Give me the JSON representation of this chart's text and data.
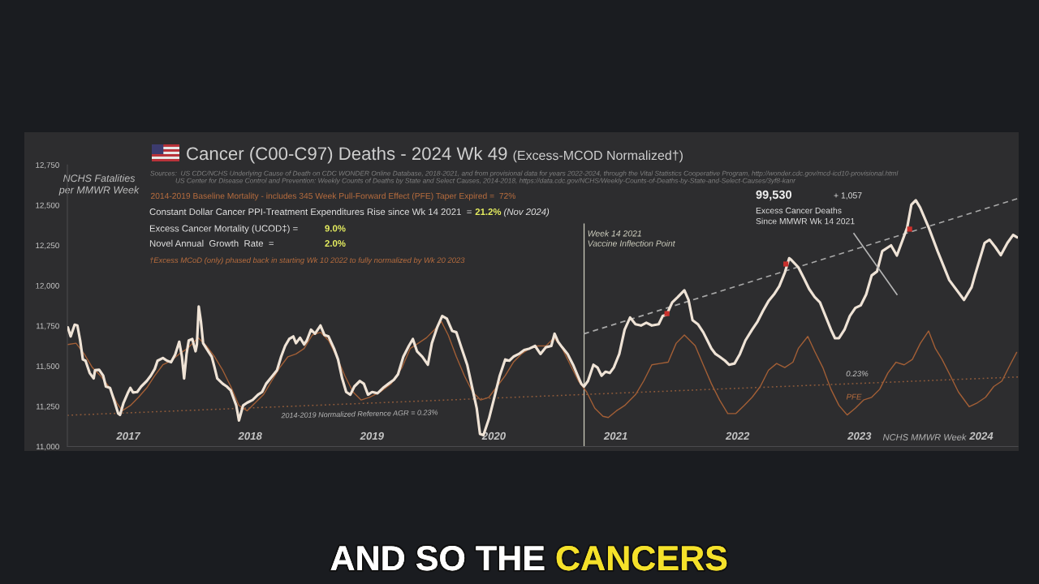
{
  "chart_data": {
    "type": "line",
    "title": "Cancer (C00-C97) Deaths - 2024 Wk 49",
    "subtitle": "(Excess-MCOD Normalized†)",
    "ylabel": "NCHS Fatalities\nper MMWR Week",
    "xlabel": "NCHS MMWR Week",
    "xlim": [
      2017.0,
      2024.8
    ],
    "xticks": [
      {
        "value": 2017.5,
        "label": "2017"
      },
      {
        "value": 2018.5,
        "label": "2018"
      },
      {
        "value": 2019.5,
        "label": "2019"
      },
      {
        "value": 2020.5,
        "label": "2020"
      },
      {
        "value": 2021.5,
        "label": "2021"
      },
      {
        "value": 2022.5,
        "label": "2022"
      },
      {
        "value": 2023.5,
        "label": "2023"
      },
      {
        "value": 2024.5,
        "label": "2024"
      }
    ],
    "ylim": [
      11000,
      12750
    ],
    "yticks": [
      {
        "value": 11000,
        "label": "11,000"
      },
      {
        "value": 11250,
        "label": "11,250"
      },
      {
        "value": 11500,
        "label": "11,500"
      },
      {
        "value": 11750,
        "label": "11,750"
      },
      {
        "value": 12000,
        "label": "12,000"
      },
      {
        "value": 12250,
        "label": "12,250"
      },
      {
        "value": 12500,
        "label": "12,500"
      },
      {
        "value": 12750,
        "label": "12,750"
      }
    ],
    "grid": false,
    "series": [
      {
        "color": "#a35f36",
        "line_style": "solid",
        "x": [
          2017.004,
          2017.071,
          2017.138,
          2017.205,
          2017.272,
          2017.339,
          2017.405,
          2017.45,
          2017.517,
          2017.584,
          2017.651,
          2017.717,
          2017.784,
          2017.851,
          2017.918,
          2017.985,
          2018.074,
          2018.141,
          2018.208,
          2018.275,
          2018.341,
          2018.408,
          2018.475,
          2018.542,
          2018.609,
          2018.676,
          2018.743,
          2018.81,
          2018.876,
          2018.943,
          2019.01,
          2019.077,
          2019.143,
          2019.21,
          2019.277,
          2019.344,
          2019.411,
          2019.479,
          2019.568,
          2019.657,
          2019.746,
          2019.813,
          2019.88,
          2019.947,
          2020.013,
          2020.069,
          2020.125,
          2020.192,
          2020.258,
          2020.325,
          2020.392,
          2020.459,
          2020.526,
          2020.593,
          2020.66,
          2020.726,
          2020.793,
          2020.86,
          2020.927,
          2020.994,
          2021.061,
          2021.127,
          2021.194,
          2021.261,
          2021.328,
          2021.395,
          2021.439,
          2021.506,
          2021.573,
          2021.662,
          2021.729,
          2021.796,
          2021.863,
          2021.93,
          2021.996,
          2022.063,
          2022.152,
          2022.218,
          2022.285,
          2022.352,
          2022.419,
          2022.486,
          2022.553,
          2022.619,
          2022.686,
          2022.753,
          2022.82,
          2022.887,
          2022.954,
          2022.998,
          2023.076,
          2023.132,
          2023.199,
          2023.266,
          2023.332,
          2023.399,
          2023.466,
          2023.533,
          2023.6,
          2023.666,
          2023.733,
          2023.8,
          2023.867,
          2023.934,
          2024.0,
          2024.067,
          2024.123,
          2024.178,
          2024.246,
          2024.312,
          2024.401,
          2024.468,
          2024.535,
          2024.602,
          2024.669,
          2024.736,
          2024.79
        ],
        "values": [
          11634,
          11642,
          11575,
          11491,
          11440,
          11373,
          11272,
          11222,
          11255,
          11306,
          11364,
          11440,
          11508,
          11533,
          11575,
          11609,
          11676,
          11625,
          11558,
          11474,
          11373,
          11255,
          11222,
          11272,
          11322,
          11407,
          11491,
          11558,
          11575,
          11609,
          11693,
          11710,
          11659,
          11558,
          11440,
          11339,
          11289,
          11306,
          11339,
          11390,
          11491,
          11609,
          11642,
          11676,
          11726,
          11777,
          11693,
          11558,
          11440,
          11339,
          11289,
          11306,
          11373,
          11440,
          11524,
          11575,
          11609,
          11625,
          11625,
          11676,
          11609,
          11508,
          11407,
          11339,
          11238,
          11188,
          11180,
          11222,
          11255,
          11322,
          11407,
          11508,
          11516,
          11524,
          11642,
          11693,
          11626,
          11508,
          11390,
          11289,
          11205,
          11205,
          11255,
          11306,
          11373,
          11474,
          11516,
          11491,
          11524,
          11609,
          11684,
          11592,
          11491,
          11356,
          11255,
          11196,
          11238,
          11289,
          11306,
          11356,
          11457,
          11524,
          11508,
          11541,
          11642,
          11718,
          11609,
          11541,
          11440,
          11339,
          11247,
          11272,
          11306,
          11373,
          11407,
          11508,
          11585
        ]
      },
      {
        "color": "#8f5b3b",
        "line_style": "dotted",
        "x": [
          2017.0,
          2024.8
        ],
        "values": [
          11194,
          11432
        ]
      },
      {
        "color": "#a8a8a8",
        "line_style": "dashed",
        "x": [
          2021.238,
          2024.794
        ],
        "values": [
          11700,
          12540
        ]
      },
      {
        "color": "#efe3d6",
        "line_style": "solid",
        "x": [
          2017.004,
          2017.027,
          2017.06,
          2017.082,
          2017.105,
          2017.127,
          2017.149,
          2017.183,
          2017.216,
          2017.227,
          2017.261,
          2017.294,
          2017.316,
          2017.35,
          2017.383,
          2017.417,
          2017.432,
          2017.461,
          2017.495,
          2017.517,
          2017.539,
          2017.573,
          2017.606,
          2017.651,
          2017.684,
          2017.717,
          2017.74,
          2017.784,
          2017.818,
          2017.851,
          2017.885,
          2017.918,
          2017.94,
          2017.958,
          2017.978,
          2017.996,
          2018.025,
          2018.052,
          2018.063,
          2018.078,
          2018.096,
          2018.114,
          2018.141,
          2018.185,
          2018.208,
          2018.23,
          2018.275,
          2018.308,
          2018.341,
          2018.386,
          2018.408,
          2018.442,
          2018.475,
          2018.52,
          2018.564,
          2018.598,
          2018.631,
          2018.676,
          2018.72,
          2018.754,
          2018.787,
          2018.82,
          2018.854,
          2018.876,
          2018.909,
          2018.943,
          2018.965,
          2018.999,
          2019.032,
          2019.077,
          2019.11,
          2019.143,
          2019.188,
          2019.221,
          2019.255,
          2019.288,
          2019.322,
          2019.355,
          2019.4,
          2019.433,
          2019.467,
          2019.501,
          2019.545,
          2019.59,
          2019.635,
          2019.679,
          2019.713,
          2019.757,
          2019.802,
          2019.835,
          2019.869,
          2019.913,
          2019.958,
          2019.991,
          2020.036,
          2020.076,
          2020.114,
          2020.158,
          2020.192,
          2020.236,
          2020.281,
          2020.325,
          2020.359,
          2020.386,
          2020.414,
          2020.459,
          2020.504,
          2020.548,
          2020.593,
          2020.626,
          2020.66,
          2020.704,
          2020.749,
          2020.793,
          2020.838,
          2020.882,
          2020.927,
          2020.971,
          2020.998,
          2021.027,
          2021.06,
          2021.105,
          2021.15,
          2021.183,
          2021.217,
          2021.239,
          2021.272,
          2021.317,
          2021.35,
          2021.384,
          2021.417,
          2021.451,
          2021.484,
          2021.529,
          2021.573,
          2021.618,
          2021.662,
          2021.707,
          2021.751,
          2021.796,
          2021.852,
          2021.885,
          2021.918,
          2021.963,
          2022.008,
          2022.063,
          2022.097,
          2022.13,
          2022.174,
          2022.218,
          2022.252,
          2022.285,
          2022.319,
          2022.352,
          2022.397,
          2022.43,
          2022.475,
          2022.519,
          2022.564,
          2022.619,
          2022.664,
          2022.709,
          2022.753,
          2022.798,
          2022.842,
          2022.887,
          2022.923,
          2022.94,
          2022.998,
          2023.043,
          2023.087,
          2023.132,
          2023.176,
          2023.221,
          2023.266,
          2023.299,
          2023.332,
          2023.377,
          2023.421,
          2023.466,
          2023.511,
          2023.555,
          2023.6,
          2023.644,
          2023.687,
          2023.759,
          2023.807,
          2023.891,
          2023.926,
          2023.962,
          2023.998,
          2024.069,
          2024.141,
          2024.237,
          2024.358,
          2024.42,
          2024.447,
          2024.527,
          2024.567,
          2024.614,
          2024.66,
          2024.714,
          2024.761,
          2024.794
        ],
        "values": [
          11740,
          11684,
          11757,
          11752,
          11659,
          11541,
          11533,
          11457,
          11423,
          11474,
          11477,
          11440,
          11373,
          11364,
          11289,
          11205,
          11196,
          11272,
          11331,
          11364,
          11336,
          11339,
          11373,
          11407,
          11440,
          11482,
          11533,
          11550,
          11533,
          11524,
          11572,
          11651,
          11558,
          11423,
          11575,
          11659,
          11668,
          11592,
          11634,
          11870,
          11777,
          11642,
          11609,
          11558,
          11491,
          11423,
          11390,
          11373,
          11348,
          11255,
          11162,
          11255,
          11272,
          11289,
          11322,
          11339,
          11390,
          11432,
          11474,
          11558,
          11625,
          11668,
          11684,
          11642,
          11676,
          11634,
          11659,
          11726,
          11701,
          11752,
          11693,
          11684,
          11609,
          11541,
          11423,
          11339,
          11322,
          11373,
          11407,
          11390,
          11322,
          11339,
          11331,
          11364,
          11390,
          11415,
          11449,
          11558,
          11625,
          11668,
          11592,
          11558,
          11508,
          11642,
          11743,
          11811,
          11794,
          11718,
          11710,
          11609,
          11508,
          11356,
          11238,
          11078,
          11070,
          11171,
          11306,
          11440,
          11541,
          11533,
          11558,
          11575,
          11600,
          11609,
          11625,
          11575,
          11617,
          11625,
          11701,
          11651,
          11617,
          11575,
          11508,
          11449,
          11390,
          11373,
          11407,
          11508,
          11491,
          11440,
          11465,
          11457,
          11491,
          11575,
          11726,
          11802,
          11760,
          11752,
          11769,
          11752,
          11760,
          11811,
          11819,
          11895,
          11928,
          11971,
          11912,
          11785,
          11760,
          11710,
          11659,
          11609,
          11575,
          11558,
          11533,
          11508,
          11516,
          11575,
          11659,
          11726,
          11777,
          11844,
          11903,
          11945,
          11996,
          12080,
          12170,
          12160,
          12114,
          12047,
          11979,
          11929,
          11895,
          11811,
          11726,
          11673,
          11673,
          11726,
          11811,
          11861,
          11878,
          11945,
          12063,
          12088,
          12214,
          12250,
          12187,
          12359,
          12503,
          12530,
          12485,
          12359,
          12214,
          12034,
          11911,
          11990,
          12063,
          12265,
          12285,
          12240,
          12189,
          12265,
          12315,
          12300
        ]
      },
      {
        "type": "scatter",
        "color": "#c9302c",
        "marker": "square",
        "x": [
          2021.92,
          2022.896,
          2023.912
        ],
        "values": [
          11826,
          12134,
          12351
        ]
      }
    ],
    "ref_lines": [
      {
        "axis": "x",
        "value": 2021.24,
        "label": "Week 14 2021\nVaccine Inflection Point",
        "color": "#cfcfbf"
      }
    ],
    "annotations": [
      "Sources:  US CDC/NCHS Underlying Cause of Death on CDC WONDER Online Database, 2018-2021, and from provisional data for years 2022-2024, through the Vital Statistics Cooperative Program, http://wonder.cdc.gov/mcd-icd10-provisional.html",
      "US Center for Disease Control and Prevention: Weekly Counts of Deaths by State and Select Causes, 2014-2018, https://data.cdc.gov/NCHS/Weekly-Counts-of-Deaths-by-State-and-Select-Causes/3yf8-kanr",
      "2014-2019 Baseline Mortality - includes 345 Week Pull-Forward Effect (PFE) Taper Expired =  72%",
      "Constant Dollar Cancer PPI-Treatment Expenditures Rise since Wk 14 2021  =",
      "21.2%",
      "(Nov 2024)",
      "Excess Cancer Mortality (UCOD‡) =",
      "9.0%",
      "Novel Annual  Growth  Rate  =",
      "2.0%",
      "†Excess MCoD (only) phased back in starting Wk 10 2022 to fully normalized by Wk 20 2023",
      "99,530",
      "+ 1,057",
      "Excess Cancer Deaths\nSince MMWR Wk 14 2021",
      "2014-2019 Normalized Reference AGR = 0.23%",
      "0.23%",
      "PFE",
      "AND SO THE",
      "CANCERS"
    ]
  }
}
